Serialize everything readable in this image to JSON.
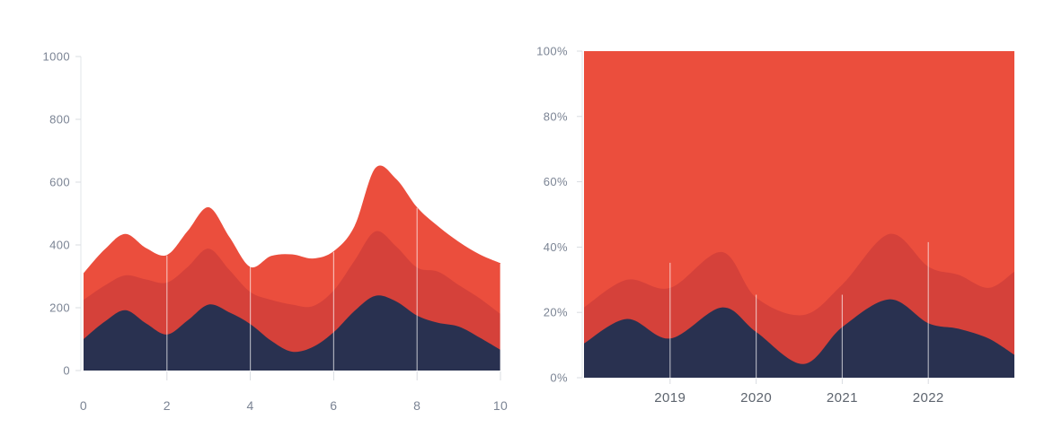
{
  "app": {
    "background": "#ffffff"
  },
  "palette": {
    "navy": "#293150",
    "red_mid": "#d5413a",
    "red_bright": "#eb4e3d",
    "axis_line_color": "#e2e5ea",
    "tick_color": "#d9dce1",
    "gridline_color": "rgba(255,255,255,0.6)",
    "y_label_color": "#7b8494",
    "left_x_label_color": "#7b8494",
    "right_x_label_color": "#5d646e"
  },
  "chart_data": [
    {
      "type": "area",
      "stacked": true,
      "title": "",
      "xlabel": "",
      "ylabel": "",
      "x_domain": [
        0,
        10
      ],
      "y_domain": [
        0,
        1000
      ],
      "grid": "partial-vertical-white-overlay",
      "legend": "none",
      "x_ticks": [
        {
          "value": 0,
          "label": "0"
        },
        {
          "value": 2,
          "label": "2"
        },
        {
          "value": 4,
          "label": "4"
        },
        {
          "value": 6,
          "label": "6"
        },
        {
          "value": 8,
          "label": "8"
        },
        {
          "value": 10,
          "label": "10"
        }
      ],
      "y_ticks": [
        {
          "value": 0,
          "label": "0"
        },
        {
          "value": 200,
          "label": "200"
        },
        {
          "value": 400,
          "label": "400"
        },
        {
          "value": 600,
          "label": "600"
        },
        {
          "value": 800,
          "label": "800"
        },
        {
          "value": 1000,
          "label": "1000"
        }
      ],
      "x": [
        0,
        0.5,
        1,
        1.5,
        2,
        2.5,
        3,
        3.5,
        4,
        4.5,
        5,
        5.5,
        6,
        6.5,
        7,
        7.5,
        8,
        8.5,
        9,
        9.5,
        10
      ],
      "boundary_note": "boundary = cumulative stacked top value of each layer, bottom layer first",
      "series": [
        {
          "name": "layer-bottom-navy",
          "color": "#293150",
          "boundary": [
            100,
            155,
            192,
            150,
            115,
            160,
            210,
            185,
            148,
            95,
            60,
            75,
            122,
            190,
            238,
            220,
            175,
            152,
            140,
            105,
            66
          ]
        },
        {
          "name": "layer-middle-dark-red",
          "color": "#d5413a",
          "boundary": [
            225,
            270,
            303,
            290,
            280,
            330,
            388,
            320,
            250,
            225,
            210,
            205,
            255,
            350,
            443,
            395,
            328,
            315,
            272,
            230,
            180
          ]
        },
        {
          "name": "layer-top-bright-red",
          "color": "#eb4e3d",
          "boundary": [
            310,
            385,
            435,
            390,
            368,
            445,
            520,
            425,
            330,
            365,
            370,
            357,
            380,
            460,
            645,
            610,
            520,
            460,
            410,
            370,
            342
          ]
        }
      ],
      "gridlines": [
        {
          "x": 2,
          "top": 366
        },
        {
          "x": 4,
          "top": 332
        },
        {
          "x": 6,
          "top": 378
        },
        {
          "x": 8,
          "top": 518
        },
        {
          "x": 10,
          "top": 340
        }
      ]
    },
    {
      "type": "area",
      "stacked": true,
      "normalized_percent": true,
      "title": "",
      "xlabel": "",
      "ylabel": "",
      "x_domain": [
        2018,
        2023
      ],
      "y_domain": [
        0,
        100
      ],
      "grid": "partial-vertical-white-overlay",
      "legend": "none",
      "x_ticks": [
        {
          "value": 2019,
          "label": "2019"
        },
        {
          "value": 2020,
          "label": "2020"
        },
        {
          "value": 2021,
          "label": "2021"
        },
        {
          "value": 2022,
          "label": "2022"
        }
      ],
      "y_ticks": [
        {
          "value": 0,
          "label": "0%"
        },
        {
          "value": 20,
          "label": "20%"
        },
        {
          "value": 40,
          "label": "40%"
        },
        {
          "value": 60,
          "label": "60%"
        },
        {
          "value": 80,
          "label": "80%"
        },
        {
          "value": 100,
          "label": "100%"
        }
      ],
      "x": [
        2018,
        2018.5,
        2019,
        2019.6,
        2020,
        2020.55,
        2021,
        2021.55,
        2022,
        2022.35,
        2022.7,
        2023
      ],
      "boundary_note": "boundary = cumulative stacked top in percent, bottom layer first",
      "series": [
        {
          "name": "layer-bottom-navy",
          "color": "#293150",
          "boundary": [
            10.5,
            18,
            12,
            21.5,
            14,
            4.2,
            15.5,
            24,
            16.7,
            15,
            12,
            7
          ]
        },
        {
          "name": "layer-middle-dark-red",
          "color": "#d5413a",
          "boundary": [
            21.5,
            30,
            27.5,
            38.5,
            24.5,
            19.2,
            28.5,
            44,
            34,
            31.5,
            27.5,
            32.5
          ]
        },
        {
          "name": "layer-top-bright-red",
          "color": "#eb4e3d",
          "boundary": [
            100,
            100,
            100,
            100,
            100,
            100,
            100,
            100,
            100,
            100,
            100,
            100
          ]
        }
      ],
      "gridlines": [
        {
          "x": 2019,
          "top": 35.2
        },
        {
          "x": 2020,
          "top": 25.4
        },
        {
          "x": 2021,
          "top": 25.4
        },
        {
          "x": 2022,
          "top": 41.5
        }
      ]
    }
  ]
}
